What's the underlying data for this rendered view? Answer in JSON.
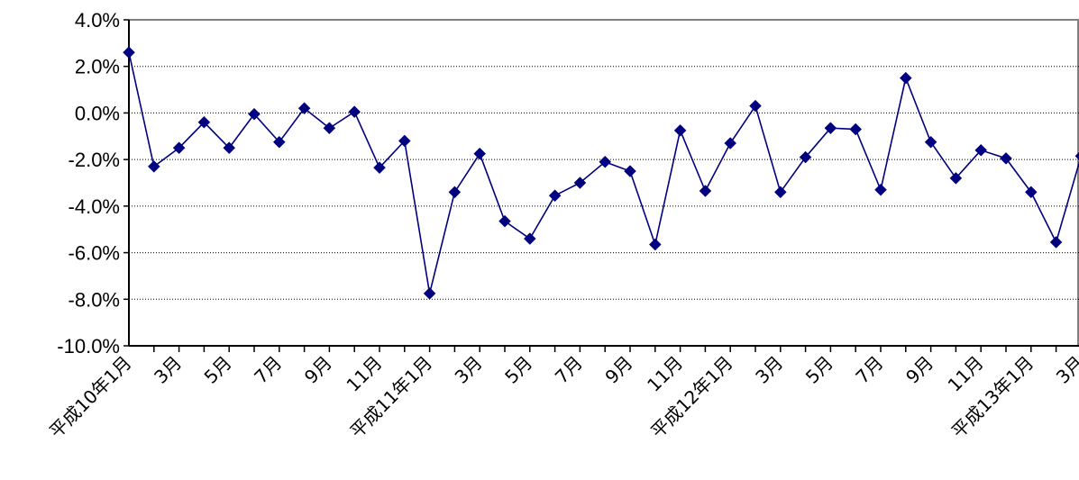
{
  "chart_data": {
    "type": "line",
    "title": "",
    "xlabel": "",
    "ylabel": "",
    "ylim": [
      -10.0,
      4.0
    ],
    "y_ticks": [
      "4.0%",
      "2.0%",
      "0.0%",
      "-2.0%",
      "-4.0%",
      "-6.0%",
      "-8.0%",
      "-10.0%"
    ],
    "y_tick_values": [
      4,
      2,
      0,
      -2,
      -4,
      -6,
      -8,
      -10
    ],
    "grid": "horizontal dotted",
    "legend": "none",
    "colors": {
      "line": "#000080",
      "marker": "#000080",
      "grid": "#000000",
      "axis": "#000000",
      "frame": "#808080"
    },
    "x_tick_labels": [
      "平成10年1月",
      "",
      "3月",
      "",
      "5月",
      "",
      "7月",
      "",
      "9月",
      "",
      "11月",
      "",
      "平成11年1月",
      "",
      "3月",
      "",
      "5月",
      "",
      "7月",
      "",
      "9月",
      "",
      "11月",
      "",
      "平成12年1月",
      "",
      "3月",
      "",
      "5月",
      "",
      "7月",
      "",
      "9月",
      "",
      "11月",
      "",
      "平成13年1月",
      "",
      "3月",
      ""
    ],
    "series": [
      {
        "values": [
          2.6,
          -2.3,
          -1.5,
          -0.4,
          -1.5,
          -0.05,
          -1.25,
          0.2,
          -0.65,
          0.05,
          -2.35,
          -1.2,
          -7.75,
          -3.4,
          -1.75,
          -4.65,
          -5.4,
          -3.55,
          -3.0,
          -2.1,
          -2.5,
          -5.65,
          -0.75,
          -3.35,
          -1.3,
          0.3,
          -3.4,
          -1.9,
          -0.65,
          -0.7,
          -3.3,
          1.5,
          -1.25,
          -2.8,
          -1.6,
          -1.95,
          -3.4,
          -5.55,
          -1.85
        ]
      }
    ]
  }
}
